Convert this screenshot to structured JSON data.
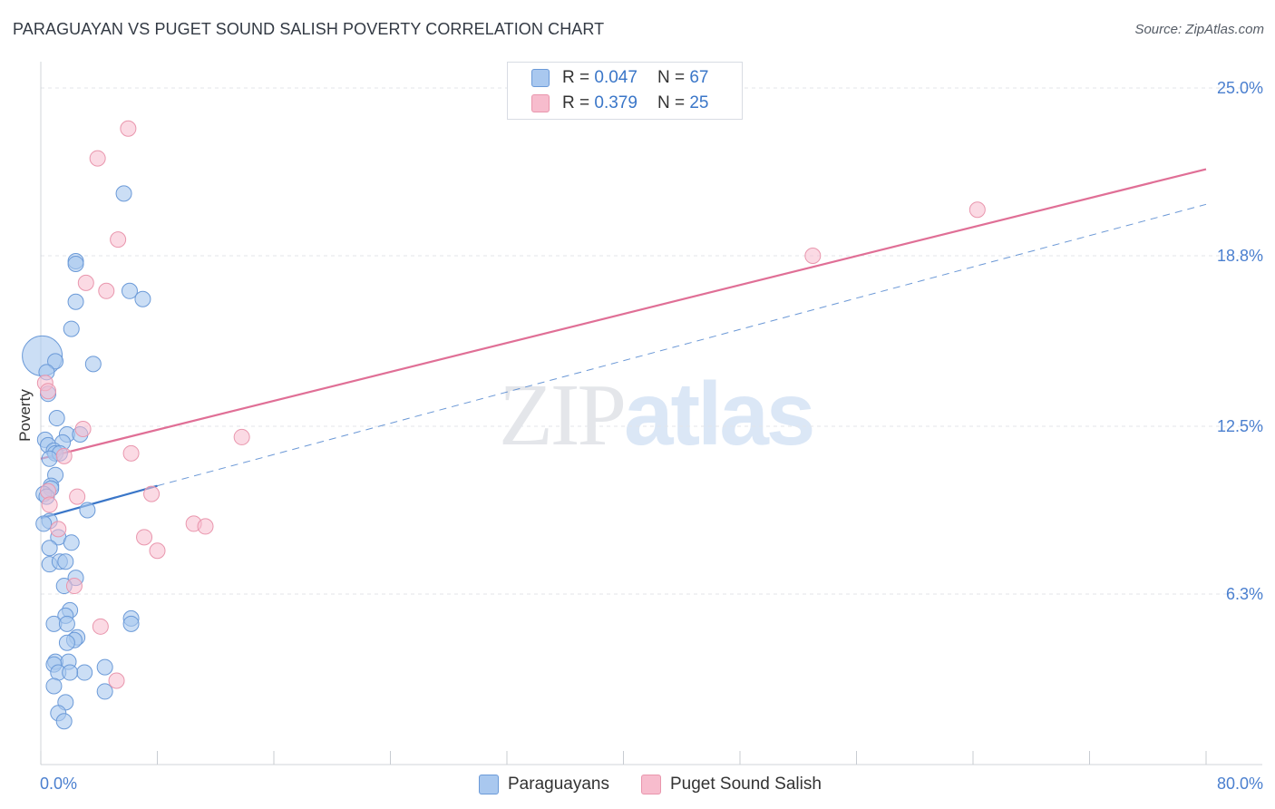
{
  "title": "PARAGUAYAN VS PUGET SOUND SALISH POVERTY CORRELATION CHART",
  "source": "Source: ZipAtlas.com",
  "colors": {
    "blue_fill": "#a9c8ef",
    "blue_stroke": "#6b9ad8",
    "blue_line": "#3a76c8",
    "pink_fill": "#f7bccd",
    "pink_stroke": "#e996ad",
    "pink_line": "#e06f96",
    "grid": "#e3e6ea",
    "tick_label": "#4a7fcf"
  },
  "legend": {
    "series1": {
      "r_label": "R =",
      "r_value": "0.047",
      "n_label": "N =",
      "n_value": "67"
    },
    "series2": {
      "r_label": "R =",
      "r_value": "0.379",
      "n_label": "N =",
      "n_value": "25"
    }
  },
  "watermark": {
    "zip": "ZIP",
    "atlas": "atlas"
  },
  "chart_data": {
    "type": "scatter",
    "title": "PARAGUAYAN VS PUGET SOUND SALISH POVERTY CORRELATION CHART",
    "xlabel": "",
    "ylabel": "Poverty",
    "xlim": [
      0,
      80
    ],
    "ylim": [
      0,
      25
    ],
    "x_tick_labels": [
      "0.0%",
      "80.0%"
    ],
    "y_ticks": [
      6.3,
      12.5,
      18.8,
      25.0
    ],
    "y_tick_labels": [
      "6.3%",
      "12.5%",
      "18.8%",
      "25.0%"
    ],
    "grid": true,
    "legend_position": "top-center",
    "series": [
      {
        "name": "Paraguayans",
        "trend": {
          "x": [
            0,
            8
          ],
          "y": [
            9.1,
            10.3
          ],
          "dashed_extension_to": [
            80,
            20.7
          ]
        },
        "points": [
          [
            5.7,
            21.1
          ],
          [
            2.4,
            18.6
          ],
          [
            2.4,
            18.5
          ],
          [
            2.4,
            17.1
          ],
          [
            6.1,
            17.5
          ],
          [
            7.0,
            17.2
          ],
          [
            2.1,
            16.1
          ],
          [
            0.1,
            15.1
          ],
          [
            1.0,
            14.9
          ],
          [
            3.6,
            14.8
          ],
          [
            0.4,
            14.5
          ],
          [
            0.5,
            13.7
          ],
          [
            1.1,
            12.8
          ],
          [
            1.8,
            12.2
          ],
          [
            2.7,
            12.2
          ],
          [
            0.3,
            12.0
          ],
          [
            1.5,
            11.9
          ],
          [
            0.5,
            11.8
          ],
          [
            0.9,
            11.6
          ],
          [
            1.0,
            11.5
          ],
          [
            1.3,
            11.5
          ],
          [
            0.6,
            11.3
          ],
          [
            1.0,
            10.7
          ],
          [
            0.7,
            10.3
          ],
          [
            0.7,
            10.2
          ],
          [
            0.2,
            10.0
          ],
          [
            0.4,
            9.9
          ],
          [
            3.2,
            9.4
          ],
          [
            0.6,
            9.0
          ],
          [
            0.2,
            8.9
          ],
          [
            1.2,
            8.4
          ],
          [
            2.1,
            8.2
          ],
          [
            0.6,
            8.0
          ],
          [
            0.6,
            7.4
          ],
          [
            1.3,
            7.5
          ],
          [
            1.7,
            7.5
          ],
          [
            2.4,
            6.9
          ],
          [
            1.6,
            6.6
          ],
          [
            2.0,
            5.7
          ],
          [
            1.7,
            5.5
          ],
          [
            6.2,
            5.4
          ],
          [
            0.9,
            5.2
          ],
          [
            1.8,
            5.2
          ],
          [
            6.2,
            5.2
          ],
          [
            2.5,
            4.7
          ],
          [
            2.3,
            4.6
          ],
          [
            1.8,
            4.5
          ],
          [
            1.0,
            3.8
          ],
          [
            1.9,
            3.8
          ],
          [
            0.9,
            3.7
          ],
          [
            4.4,
            3.6
          ],
          [
            1.2,
            3.4
          ],
          [
            3.0,
            3.4
          ],
          [
            2.0,
            3.4
          ],
          [
            0.9,
            2.9
          ],
          [
            4.4,
            2.7
          ],
          [
            1.7,
            2.3
          ],
          [
            1.2,
            1.9
          ],
          [
            1.6,
            1.6
          ]
        ]
      },
      {
        "name": "Puget Sound Salish",
        "trend": {
          "x": [
            0,
            80
          ],
          "y": [
            11.3,
            22.0
          ]
        },
        "points": [
          [
            6.0,
            23.5
          ],
          [
            3.9,
            22.4
          ],
          [
            5.3,
            19.4
          ],
          [
            64.3,
            20.5
          ],
          [
            53.0,
            18.8
          ],
          [
            3.1,
            17.8
          ],
          [
            4.5,
            17.5
          ],
          [
            0.3,
            14.1
          ],
          [
            0.5,
            13.8
          ],
          [
            2.9,
            12.4
          ],
          [
            13.8,
            12.1
          ],
          [
            6.2,
            11.5
          ],
          [
            1.6,
            11.4
          ],
          [
            0.5,
            10.1
          ],
          [
            7.6,
            10.0
          ],
          [
            2.5,
            9.9
          ],
          [
            0.6,
            9.6
          ],
          [
            10.5,
            8.9
          ],
          [
            11.3,
            8.8
          ],
          [
            7.1,
            8.4
          ],
          [
            1.2,
            8.7
          ],
          [
            8.0,
            7.9
          ],
          [
            2.3,
            6.6
          ],
          [
            4.1,
            5.1
          ],
          [
            5.2,
            3.1
          ]
        ]
      }
    ]
  },
  "bottom_legend": {
    "series1_label": "Paraguayans",
    "series2_label": "Puget Sound Salish"
  }
}
